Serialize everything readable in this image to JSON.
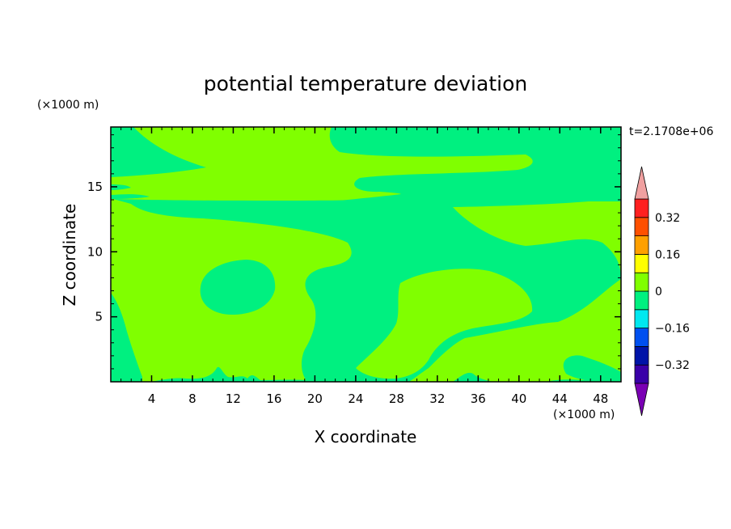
{
  "chart_data": {
    "type": "heatmap",
    "title": "potential temperature deviation",
    "xlabel": "X coordinate",
    "ylabel": "Z coordinate",
    "x_unit": "(×1000 m)",
    "y_unit": "(×1000 m)",
    "time_label": "t=2.1708e+06",
    "xlim": [
      0,
      50
    ],
    "ylim": [
      0,
      19.6
    ],
    "x_ticks": [
      4,
      8,
      12,
      16,
      20,
      24,
      28,
      32,
      36,
      40,
      44,
      48
    ],
    "y_ticks": [
      5,
      10,
      15
    ],
    "colorbar": {
      "tick_labels": [
        "0.32",
        "0.16",
        "0",
        "-0.16",
        "-0.32"
      ],
      "tick_values": [
        0.32,
        0.16,
        0,
        -0.16,
        -0.32
      ],
      "levels": [
        -0.4,
        -0.32,
        -0.24,
        -0.16,
        -0.08,
        0,
        0.08,
        0.16,
        0.24,
        0.32,
        0.4
      ],
      "colors": [
        "#7a00b4",
        "#3a00a8",
        "#0014a8",
        "#0050f0",
        "#00e8f0",
        "#00f080",
        "#80ff00",
        "#ffff00",
        "#ffa000",
        "#ff5000",
        "#ff2020",
        "#f0a0a0"
      ]
    },
    "background_color": "#80ff00",
    "regions": [
      {
        "name": "upper-left negative band",
        "value_range": [
          -0.08,
          0
        ],
        "color": "#00f080"
      },
      {
        "name": "upper-right negative band",
        "value_range": [
          -0.08,
          0
        ],
        "color": "#00f080"
      },
      {
        "name": "central negative region",
        "value_range": [
          -0.08,
          0
        ],
        "color": "#00f080"
      },
      {
        "name": "left-middle negative blob",
        "value_range": [
          -0.08,
          0
        ],
        "color": "#00f080"
      },
      {
        "name": "left edge negative strip",
        "value_range": [
          -0.08,
          0
        ],
        "color": "#00f080"
      },
      {
        "name": "right edge negative region",
        "value_range": [
          -0.08,
          0
        ],
        "color": "#00f080"
      }
    ]
  }
}
